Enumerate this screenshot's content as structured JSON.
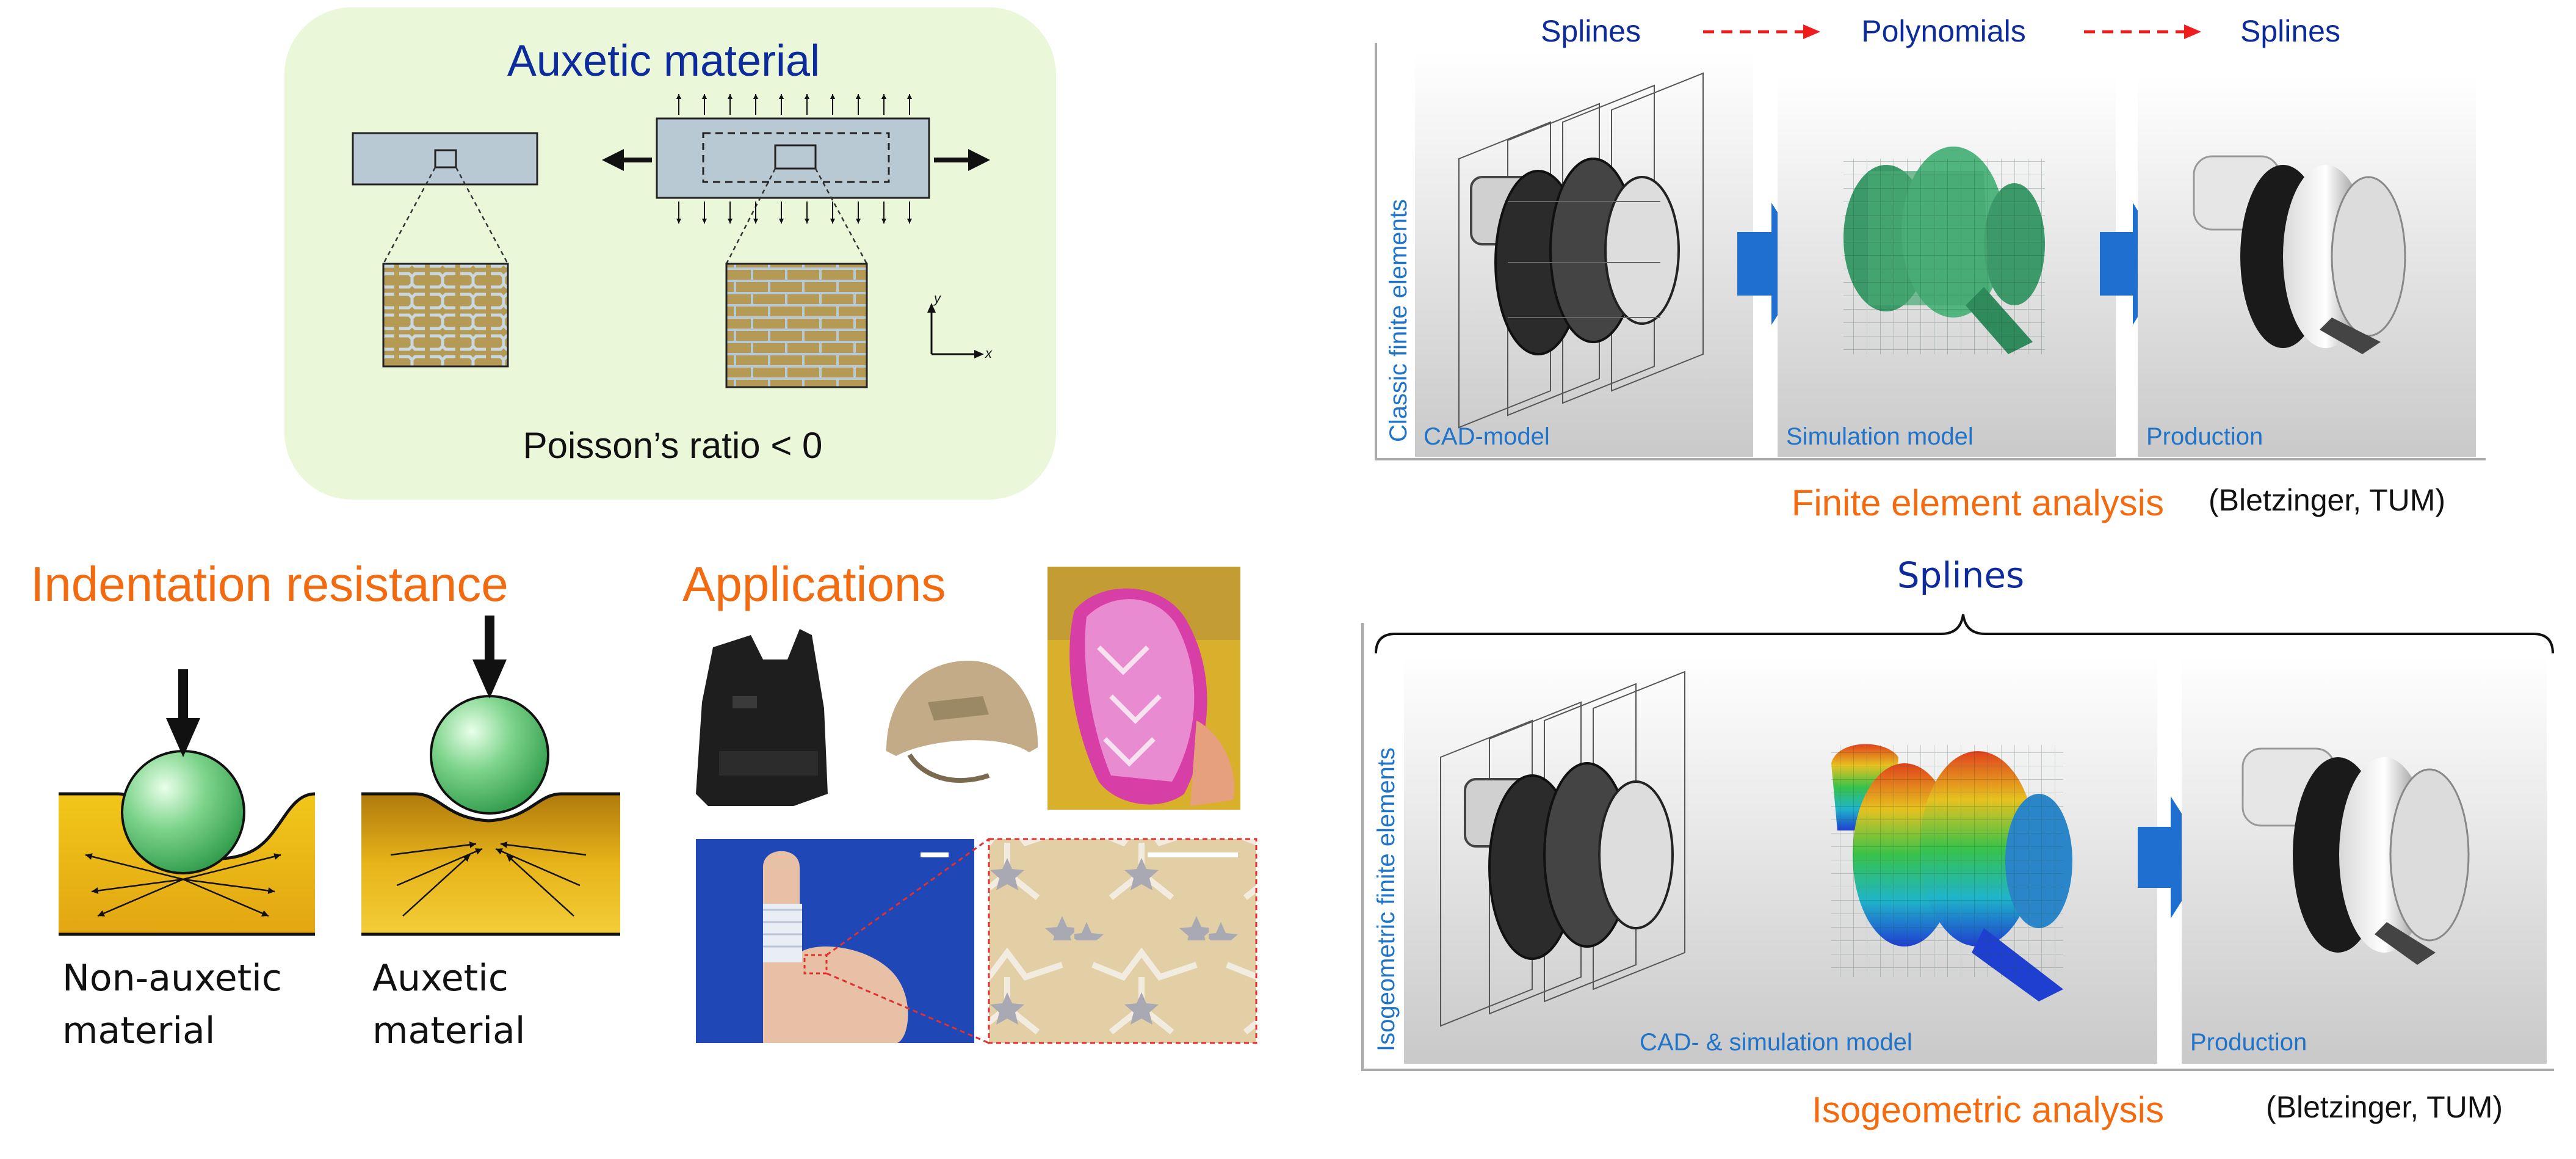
{
  "auxetic": {
    "title": "Auxetic material",
    "poisson_label": "Poisson’s ratio < 0",
    "axis_y": "y",
    "axis_x": "x"
  },
  "indentation": {
    "title": "Indentation resistance",
    "non_auxetic_label_line1": "Non-auxetic",
    "non_auxetic_label_line2": "material",
    "auxetic_label_line1": "Auxetic",
    "auxetic_label_line2": "material"
  },
  "applications": {
    "title": "Applications"
  },
  "fea": {
    "header_splines_left": "Splines",
    "header_polynomials": "Polynomials",
    "header_splines_right": "Splines",
    "vertical_label": "Classic finite elements",
    "panel_cad": "CAD-model",
    "panel_simulation": "Simulation model",
    "panel_production": "Production",
    "title": "Finite element analysis",
    "credit": "(Bletzinger, TUM)"
  },
  "iga": {
    "header_splines": "Splines",
    "vertical_label": "Isogeometric finite elements",
    "panel_cad_sim": "CAD- & simulation model",
    "panel_production": "Production",
    "title": "Isogeometric analysis",
    "credit": "(Bletzinger, TUM)"
  },
  "colors": {
    "orange": "#f26b10",
    "navy": "#0d2b9a",
    "blue_label": "#1f73c9",
    "panel_green": "#eaf7d9",
    "arrow_blue": "#1f6fd1",
    "dashed_red": "#ee1c1c"
  }
}
